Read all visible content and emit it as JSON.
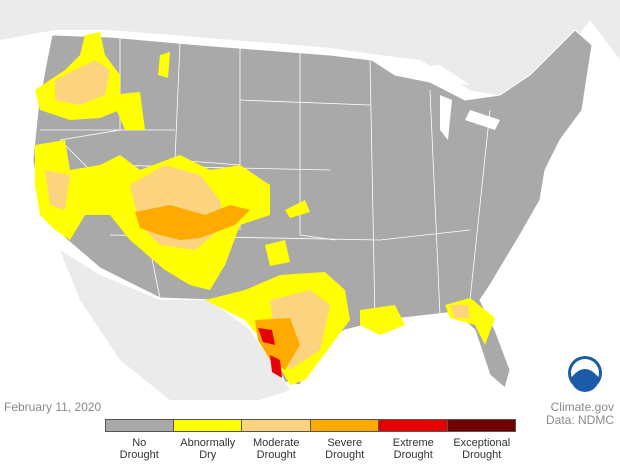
{
  "date": "February 11, 2020",
  "credits": [
    "Climate.gov",
    "Data: NDMC"
  ],
  "legend": [
    {
      "lines": [
        "No",
        "Drought"
      ],
      "color": "#a9a9a9"
    },
    {
      "lines": [
        "Abnormally",
        "Dry"
      ],
      "color": "#ffff00"
    },
    {
      "lines": [
        "Moderate",
        "Drought"
      ],
      "color": "#fcd37f"
    },
    {
      "lines": [
        "Severe",
        "Drought"
      ],
      "color": "#ffaa00"
    },
    {
      "lines": [
        "Extreme",
        "Drought"
      ],
      "color": "#e60000"
    },
    {
      "lines": [
        "Exceptional",
        "Drought"
      ],
      "color": "#730000"
    }
  ]
}
